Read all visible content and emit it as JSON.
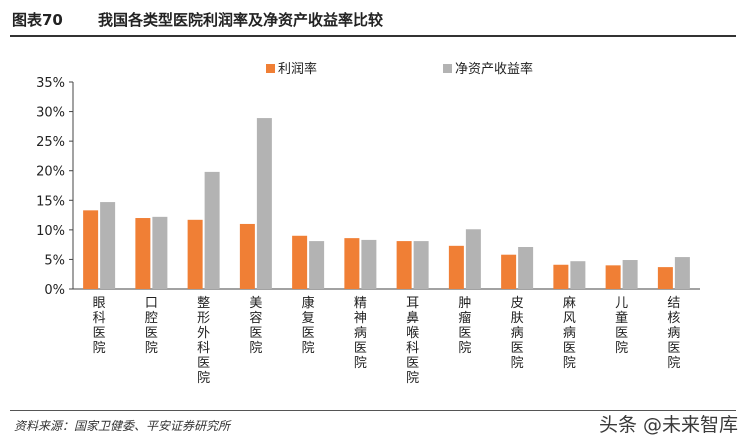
{
  "header": {
    "figure_label": "图表70",
    "title": "我国各类型医院利润率及净资产收益率比较"
  },
  "footer": {
    "source": "资料来源：国家卫健委、平安证券研究所",
    "watermark": "头条 @未来智库"
  },
  "colors": {
    "series1": "#f07f35",
    "series2": "#b3b3b3"
  },
  "chart_data": {
    "type": "bar",
    "title": "我国各类型医院利润率及净资产收益率比较",
    "xlabel": "",
    "ylabel": "",
    "ylim": [
      0,
      35
    ],
    "yticks": [
      "0%",
      "5%",
      "10%",
      "15%",
      "20%",
      "25%",
      "30%",
      "35%"
    ],
    "grid": false,
    "legend": "top-center",
    "categories": [
      "眼科医院",
      "口腔医院",
      "整形外科医院",
      "美容医院",
      "康复医院",
      "精神病医院",
      "耳鼻喉科医院",
      "肿瘤医院",
      "皮肤病医院",
      "麻风病医院",
      "儿童医院",
      "结核病医院"
    ],
    "series": [
      {
        "name": "利润率",
        "values": [
          13.3,
          12.0,
          11.7,
          11.0,
          9.0,
          8.6,
          8.1,
          7.3,
          5.8,
          4.1,
          4.0,
          3.7
        ]
      },
      {
        "name": "净资产收益率",
        "values": [
          14.7,
          12.2,
          19.8,
          28.9,
          8.1,
          8.3,
          8.1,
          10.1,
          7.1,
          4.7,
          4.9,
          5.4
        ]
      }
    ]
  }
}
